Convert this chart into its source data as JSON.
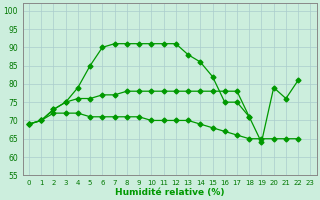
{
  "xlabel": "Humidité relative (%)",
  "background_color": "#cceedd",
  "grid_color": "#aacccc",
  "line_color": "#009900",
  "marker": "D",
  "markersize": 2.5,
  "linewidth": 0.9,
  "xlim": [
    -0.5,
    23.5
  ],
  "ylim": [
    55,
    102
  ],
  "yticks": [
    55,
    60,
    65,
    70,
    75,
    80,
    85,
    90,
    95,
    100
  ],
  "xticks": [
    0,
    1,
    2,
    3,
    4,
    5,
    6,
    7,
    8,
    9,
    10,
    11,
    12,
    13,
    14,
    15,
    16,
    17,
    18,
    19,
    20,
    21,
    22,
    23
  ],
  "series1_x": [
    0,
    1,
    2,
    3,
    4,
    5,
    6,
    7,
    8,
    9,
    10,
    11,
    12,
    13,
    14,
    15,
    16,
    17,
    18
  ],
  "series1_y": [
    69,
    70,
    73,
    75,
    79,
    85,
    90,
    91,
    91,
    91,
    91,
    91,
    91,
    88,
    86,
    82,
    75,
    75,
    71
  ],
  "series2_x": [
    0,
    1,
    2,
    3,
    4,
    5,
    6,
    7,
    8,
    9,
    10,
    11,
    12,
    13,
    14,
    15,
    16,
    17,
    18,
    19,
    20,
    21,
    22
  ],
  "series2_y": [
    69,
    70,
    73,
    75,
    76,
    76,
    77,
    77,
    78,
    78,
    78,
    78,
    78,
    78,
    78,
    78,
    78,
    78,
    71,
    64,
    79,
    76,
    81
  ],
  "series3_x": [
    0,
    1,
    2,
    3,
    4,
    5,
    6,
    7,
    8,
    9,
    10,
    11,
    12,
    13,
    14,
    15,
    16,
    17,
    18,
    19,
    20,
    21,
    22
  ],
  "series3_y": [
    69,
    70,
    72,
    72,
    72,
    71,
    71,
    71,
    71,
    71,
    70,
    70,
    70,
    70,
    69,
    68,
    67,
    66,
    65,
    65,
    65,
    65,
    65
  ]
}
